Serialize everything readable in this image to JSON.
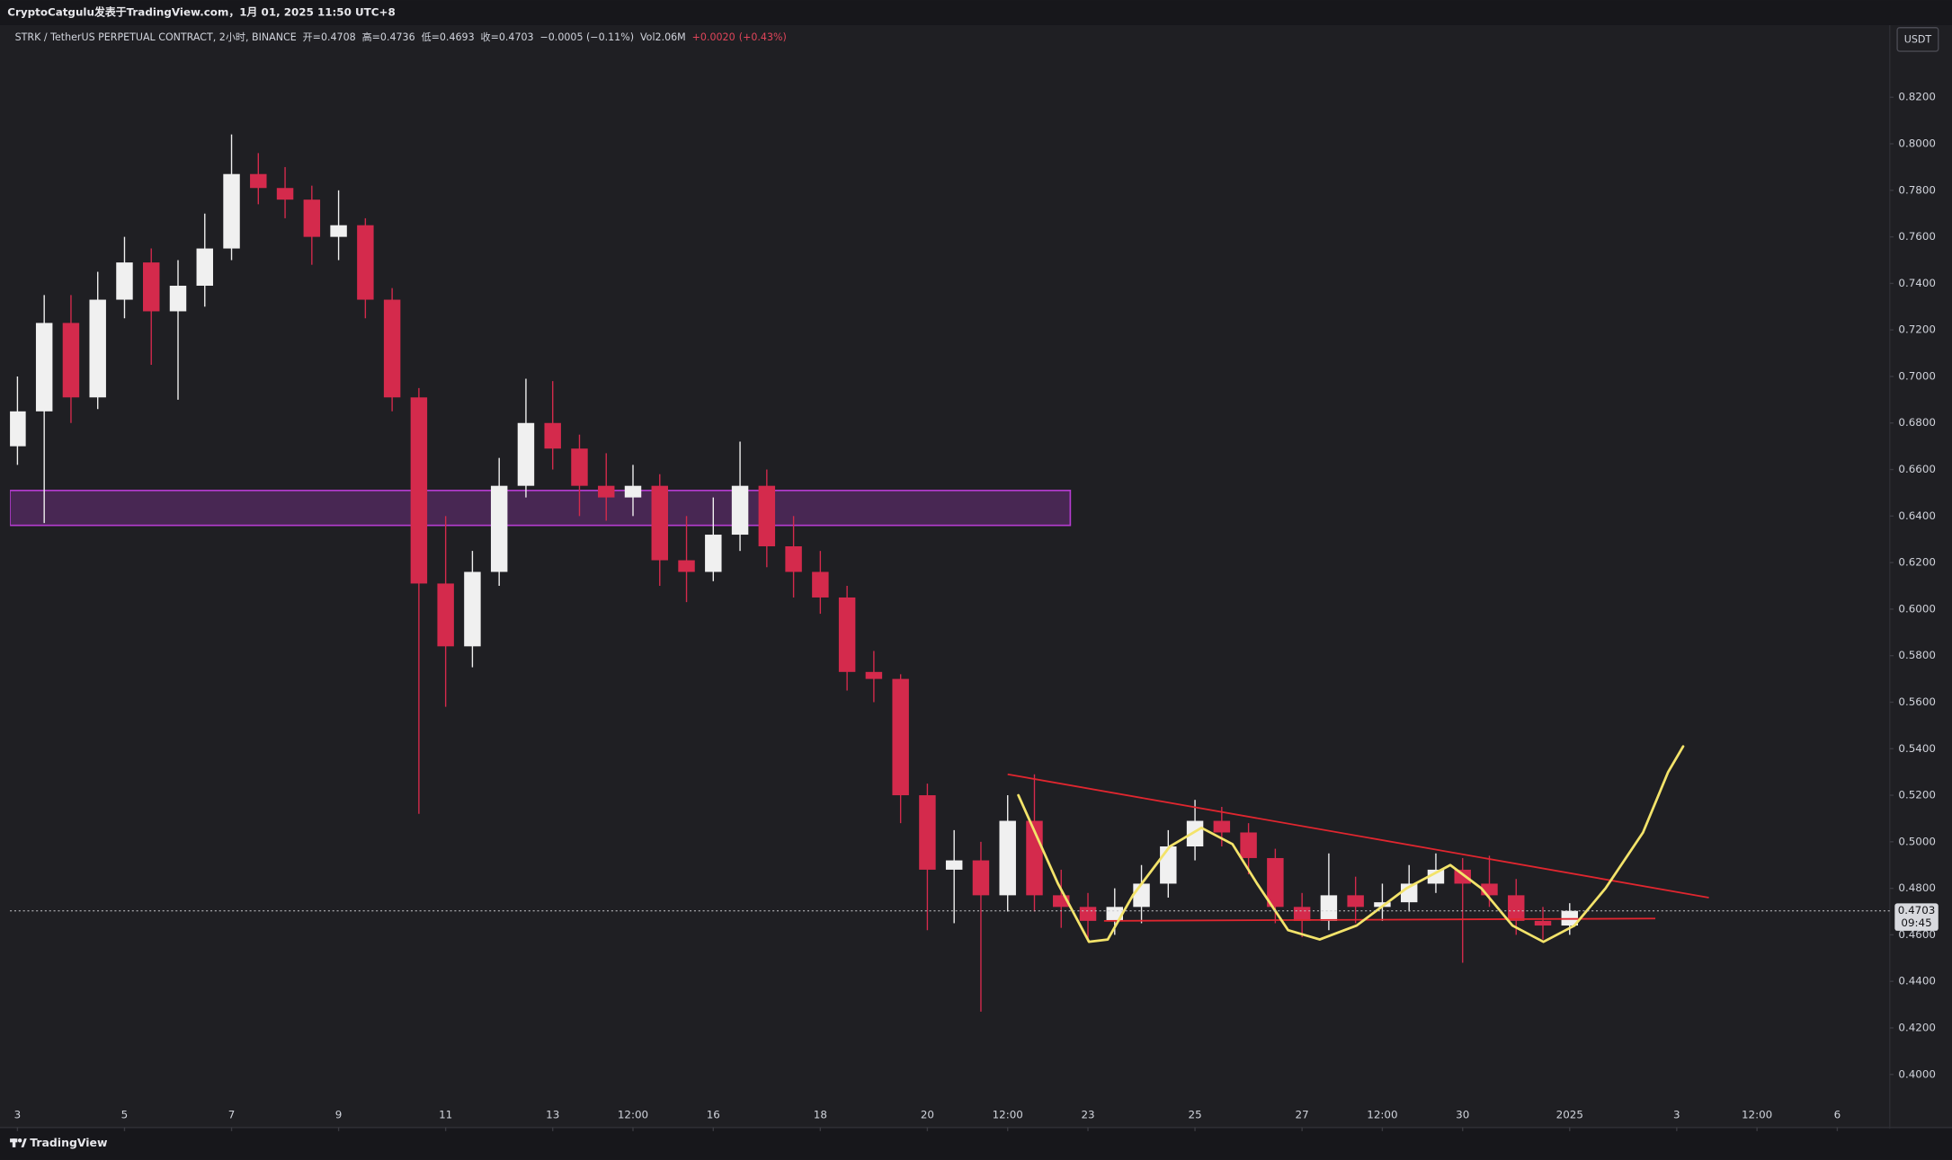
{
  "header": {
    "author_line": "CryptoCatgulu发表于TradingView.com，1月 01, 2025 11:50 UTC+8",
    "symbol": "STRK / TetherUS PERPETUAL CONTRACT, 2小时, BINANCE",
    "open": "开=0.4708",
    "high": "高=0.4736",
    "low": "低=0.4693",
    "close": "收=0.4703",
    "change": "−0.0005 (−0.11%)",
    "volume_label": "Vol",
    "volume": "2.06M",
    "indicator_change": "+0.0020",
    "indicator_pct": "(+0.43%)"
  },
  "chart_data": {
    "type": "candlestick",
    "currency": "USDT",
    "x": [
      0,
      0.5,
      1,
      1.5,
      2,
      2.5,
      3,
      3.5,
      4,
      4.5,
      5,
      5.5,
      6,
      6.5,
      7,
      7.5,
      8,
      8.5,
      9,
      9.5,
      10,
      10.5,
      11,
      11.5,
      12,
      12.5,
      13,
      13.5,
      14,
      14.5,
      15,
      15.5,
      16,
      16.5,
      17,
      17.5,
      18,
      18.5,
      19,
      19.5,
      20,
      20.5,
      21,
      21.5,
      22,
      22.5,
      23,
      23.5,
      24,
      24.5,
      25,
      25.5,
      26,
      26.5,
      27,
      27.5,
      28,
      28.5,
      29
    ],
    "open": [
      0.67,
      0.685,
      0.723,
      0.691,
      0.733,
      0.749,
      0.728,
      0.739,
      0.755,
      0.787,
      0.781,
      0.776,
      0.76,
      0.765,
      0.733,
      0.691,
      0.611,
      0.584,
      0.616,
      0.653,
      0.68,
      0.669,
      0.653,
      0.648,
      0.653,
      0.621,
      0.616,
      0.632,
      0.653,
      0.627,
      0.616,
      0.605,
      0.573,
      0.57,
      0.52,
      0.488,
      0.492,
      0.477,
      0.509,
      0.477,
      0.472,
      0.466,
      0.472,
      0.482,
      0.498,
      0.509,
      0.504,
      0.493,
      0.472,
      0.466,
      0.477,
      0.472,
      0.474,
      0.482,
      0.488,
      0.482,
      0.477,
      0.466,
      0.464
    ],
    "high": [
      0.7,
      0.735,
      0.735,
      0.745,
      0.76,
      0.755,
      0.75,
      0.77,
      0.804,
      0.796,
      0.79,
      0.782,
      0.78,
      0.768,
      0.738,
      0.695,
      0.64,
      0.625,
      0.665,
      0.699,
      0.698,
      0.675,
      0.667,
      0.662,
      0.658,
      0.64,
      0.648,
      0.672,
      0.66,
      0.64,
      0.625,
      0.61,
      0.582,
      0.572,
      0.525,
      0.505,
      0.5,
      0.52,
      0.529,
      0.488,
      0.478,
      0.48,
      0.49,
      0.505,
      0.518,
      0.515,
      0.508,
      0.497,
      0.478,
      0.495,
      0.485,
      0.482,
      0.49,
      0.495,
      0.493,
      0.494,
      0.484,
      0.472,
      0.4736
    ],
    "low": [
      0.662,
      0.637,
      0.68,
      0.686,
      0.725,
      0.705,
      0.69,
      0.73,
      0.75,
      0.774,
      0.768,
      0.748,
      0.75,
      0.725,
      0.685,
      0.512,
      0.558,
      0.575,
      0.61,
      0.648,
      0.66,
      0.64,
      0.638,
      0.64,
      0.61,
      0.603,
      0.612,
      0.625,
      0.618,
      0.605,
      0.598,
      0.565,
      0.56,
      0.508,
      0.462,
      0.465,
      0.427,
      0.47,
      0.47,
      0.463,
      0.457,
      0.46,
      0.465,
      0.476,
      0.492,
      0.498,
      0.486,
      0.465,
      0.459,
      0.462,
      0.465,
      0.466,
      0.47,
      0.478,
      0.448,
      0.472,
      0.46,
      0.458,
      0.46
    ],
    "close": [
      0.685,
      0.723,
      0.691,
      0.733,
      0.749,
      0.728,
      0.739,
      0.755,
      0.787,
      0.781,
      0.776,
      0.76,
      0.765,
      0.733,
      0.691,
      0.611,
      0.584,
      0.616,
      0.653,
      0.68,
      0.669,
      0.653,
      0.648,
      0.653,
      0.621,
      0.616,
      0.632,
      0.653,
      0.627,
      0.616,
      0.605,
      0.573,
      0.57,
      0.52,
      0.488,
      0.492,
      0.477,
      0.509,
      0.477,
      0.472,
      0.466,
      0.472,
      0.482,
      0.498,
      0.509,
      0.504,
      0.493,
      0.472,
      0.466,
      0.477,
      0.472,
      0.474,
      0.482,
      0.488,
      0.482,
      0.477,
      0.466,
      0.464,
      0.4703
    ],
    "up_color": "#f0f0f0",
    "down_color": "#d42a4c",
    "xlim": [
      -0.14,
      34.98
    ],
    "xticks": [
      {
        "value": 0,
        "label": "3"
      },
      {
        "value": 2,
        "label": "5"
      },
      {
        "value": 4,
        "label": "7"
      },
      {
        "value": 6,
        "label": "9"
      },
      {
        "value": 8,
        "label": "11"
      },
      {
        "value": 10,
        "label": "13"
      },
      {
        "value": 11.5,
        "label": "12:00"
      },
      {
        "value": 13,
        "label": "16"
      },
      {
        "value": 15,
        "label": "18"
      },
      {
        "value": 17,
        "label": "20"
      },
      {
        "value": 18.5,
        "label": "12:00"
      },
      {
        "value": 20,
        "label": "23"
      },
      {
        "value": 22,
        "label": "25"
      },
      {
        "value": 24,
        "label": "27"
      },
      {
        "value": 25.5,
        "label": "12:00"
      },
      {
        "value": 27,
        "label": "30"
      },
      {
        "value": 29,
        "label": "2025"
      },
      {
        "value": 31,
        "label": "3"
      },
      {
        "value": 32.5,
        "label": "12:00"
      },
      {
        "value": 34,
        "label": "6"
      }
    ],
    "ylim": [
      0.389,
      0.851
    ],
    "yticks": [
      {
        "value": 0.4,
        "label": "0.4000"
      },
      {
        "value": 0.42,
        "label": "0.4200"
      },
      {
        "value": 0.44,
        "label": "0.4400"
      },
      {
        "value": 0.46,
        "label": "0.4600"
      },
      {
        "value": 0.48,
        "label": "0.4800"
      },
      {
        "value": 0.5,
        "label": "0.5000"
      },
      {
        "value": 0.52,
        "label": "0.5200"
      },
      {
        "value": 0.54,
        "label": "0.5400"
      },
      {
        "value": 0.56,
        "label": "0.5600"
      },
      {
        "value": 0.58,
        "label": "0.5800"
      },
      {
        "value": 0.6,
        "label": "0.6000"
      },
      {
        "value": 0.62,
        "label": "0.6200"
      },
      {
        "value": 0.64,
        "label": "0.6400"
      },
      {
        "value": 0.66,
        "label": "0.6600"
      },
      {
        "value": 0.68,
        "label": "0.6800"
      },
      {
        "value": 0.7,
        "label": "0.7000"
      },
      {
        "value": 0.72,
        "label": "0.7200"
      },
      {
        "value": 0.74,
        "label": "0.7400"
      },
      {
        "value": 0.76,
        "label": "0.7600"
      },
      {
        "value": 0.78,
        "label": "0.7800"
      },
      {
        "value": 0.8,
        "label": "0.8000"
      },
      {
        "value": 0.82,
        "label": "0.8200"
      }
    ],
    "last_price": {
      "value": 0.4703,
      "label": "0.4703"
    },
    "countdown": "09:45",
    "zone": {
      "x": [
        -0.14,
        19.67
      ],
      "y": [
        0.636,
        0.651
      ],
      "color": "#b43ccf"
    },
    "trendlines": [
      {
        "x": [
          18.5,
          31.6
        ],
        "y": [
          0.529,
          0.476
        ]
      },
      {
        "x": [
          20.3,
          30.6
        ],
        "y": [
          0.466,
          0.467
        ]
      }
    ],
    "trendline_color": "#e0262f",
    "projection": {
      "color": "#f3e36a",
      "x": [
        18.7,
        19.44,
        20.02,
        20.37,
        20.84,
        21.53,
        22.12,
        22.7,
        23.16,
        23.74,
        24.33,
        25.02,
        25.95,
        26.77,
        27.35,
        27.93,
        28.51,
        29.09,
        29.67,
        30.37,
        30.84,
        31.12
      ],
      "y": [
        0.52,
        0.482,
        0.457,
        0.458,
        0.477,
        0.498,
        0.506,
        0.499,
        0.482,
        0.462,
        0.458,
        0.464,
        0.48,
        0.49,
        0.48,
        0.464,
        0.457,
        0.464,
        0.48,
        0.504,
        0.53,
        0.541
      ]
    }
  },
  "footer": {
    "brand": "TradingView"
  }
}
